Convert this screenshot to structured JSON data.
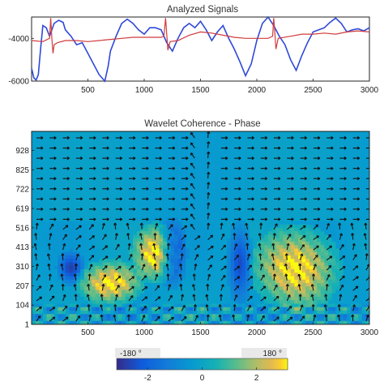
{
  "figure": {
    "top_title": "Analyzed Signals",
    "bottom_title": "Wavelet Coherence - Phase"
  },
  "chart_data": [
    {
      "type": "line",
      "title": "Analyzed Signals",
      "xlabel": "",
      "ylabel": "",
      "xlim": [
        0,
        3000
      ],
      "ylim": [
        -6000,
        -3000
      ],
      "x_ticks": [
        500,
        1000,
        1500,
        2000,
        2500,
        3000
      ],
      "x_tick_labels": [
        "500",
        "1000",
        "1500",
        "2000",
        "2500",
        "3000"
      ],
      "y_ticks": [
        -4000,
        -6000
      ],
      "y_tick_labels": [
        "-4000",
        "-6000"
      ],
      "grid": false,
      "series": [
        {
          "color": "#2f49d8",
          "x": [
            0,
            20,
            40,
            60,
            80,
            100,
            130,
            160,
            200,
            240,
            280,
            300,
            350,
            400,
            450,
            500,
            550,
            600,
            650,
            680,
            700,
            750,
            800,
            850,
            900,
            950,
            1000,
            1050,
            1100,
            1150,
            1200,
            1250,
            1300,
            1350,
            1400,
            1450,
            1500,
            1550,
            1600,
            1650,
            1700,
            1750,
            1800,
            1850,
            1900,
            1950,
            2000,
            2050,
            2100,
            2150,
            2200,
            2250,
            2300,
            2350,
            2400,
            2450,
            2500,
            2550,
            2600,
            2650,
            2700,
            2750,
            2800,
            2850,
            2900,
            2950,
            3000
          ],
          "y": [
            -5400,
            -5850,
            -5950,
            -5700,
            -4500,
            -3400,
            -3500,
            -3900,
            -3300,
            -3150,
            -3250,
            -3600,
            -3900,
            -4300,
            -4200,
            -4700,
            -5200,
            -5700,
            -6000,
            -5300,
            -4600,
            -3900,
            -3300,
            -3100,
            -3300,
            -3600,
            -3800,
            -3500,
            -3500,
            -3600,
            -4200,
            -4600,
            -4000,
            -3500,
            -3300,
            -3500,
            -3200,
            -3600,
            -4100,
            -3700,
            -3400,
            -4000,
            -4500,
            -5100,
            -5750,
            -5200,
            -4100,
            -3300,
            -3000,
            -3400,
            -3900,
            -4300,
            -5000,
            -5500,
            -4800,
            -4200,
            -3700,
            -3600,
            -3500,
            -3250,
            -3050,
            -3300,
            -3700,
            -3600,
            -3550,
            -3650,
            -3500
          ]
        },
        {
          "color": "#d23b3b",
          "x": [
            0,
            100,
            160,
            170,
            180,
            190,
            200,
            230,
            300,
            400,
            500,
            600,
            700,
            800,
            900,
            1000,
            1100,
            1150,
            1175,
            1190,
            1200,
            1210,
            1230,
            1300,
            1400,
            1500,
            1600,
            1700,
            1800,
            1900,
            2000,
            2100,
            2120,
            2140,
            2150,
            2160,
            2170,
            2190,
            2300,
            2400,
            2500,
            2600,
            2700,
            2800,
            2900,
            3000
          ],
          "y": [
            -4100,
            -4150,
            -4000,
            -3050,
            -4000,
            -4700,
            -4300,
            -4200,
            -4100,
            -4100,
            -4150,
            -4100,
            -4050,
            -4000,
            -3950,
            -3950,
            -3950,
            -3950,
            -3900,
            -3050,
            -3800,
            -4550,
            -4150,
            -4100,
            -3850,
            -3700,
            -3750,
            -3850,
            -3950,
            -4000,
            -4000,
            -4000,
            -3950,
            -3900,
            -3050,
            -3700,
            -4500,
            -4000,
            -3900,
            -3800,
            -3800,
            -3750,
            -3800,
            -3700,
            -3650,
            -3700
          ]
        }
      ]
    },
    {
      "type": "heatmap",
      "title": "Wavelet Coherence - Phase",
      "xlim": [
        0,
        3000
      ],
      "ylim": [
        1,
        1030
      ],
      "x_ticks": [
        500,
        1000,
        1500,
        2000,
        2500,
        3000
      ],
      "x_tick_labels": [
        "500",
        "1000",
        "1500",
        "2000",
        "2500",
        "3000"
      ],
      "y_ticks": [
        1,
        104,
        207,
        310,
        413,
        516,
        619,
        722,
        825,
        928
      ],
      "y_tick_labels": [
        "1",
        "104",
        "207",
        "310",
        "413",
        "516",
        "619",
        "722",
        "825",
        "928"
      ],
      "overlay": "phase arrows",
      "colormap": "parula",
      "colorbar": {
        "range": [
          -3.14,
          3.14
        ],
        "ticks": [
          -2,
          0,
          2
        ],
        "tick_labels": [
          "-2",
          "0",
          "2"
        ],
        "end_labels": [
          "-180 °",
          "180 °"
        ]
      },
      "high_phase_regions": [
        {
          "x_center": 1100,
          "y_center": 380,
          "x_width": 350,
          "y_height": 260
        },
        {
          "x_center": 2350,
          "y_center": 300,
          "x_width": 650,
          "y_height": 380
        },
        {
          "x_center": 700,
          "y_center": 220,
          "x_width": 500,
          "y_height": 200
        }
      ]
    }
  ]
}
